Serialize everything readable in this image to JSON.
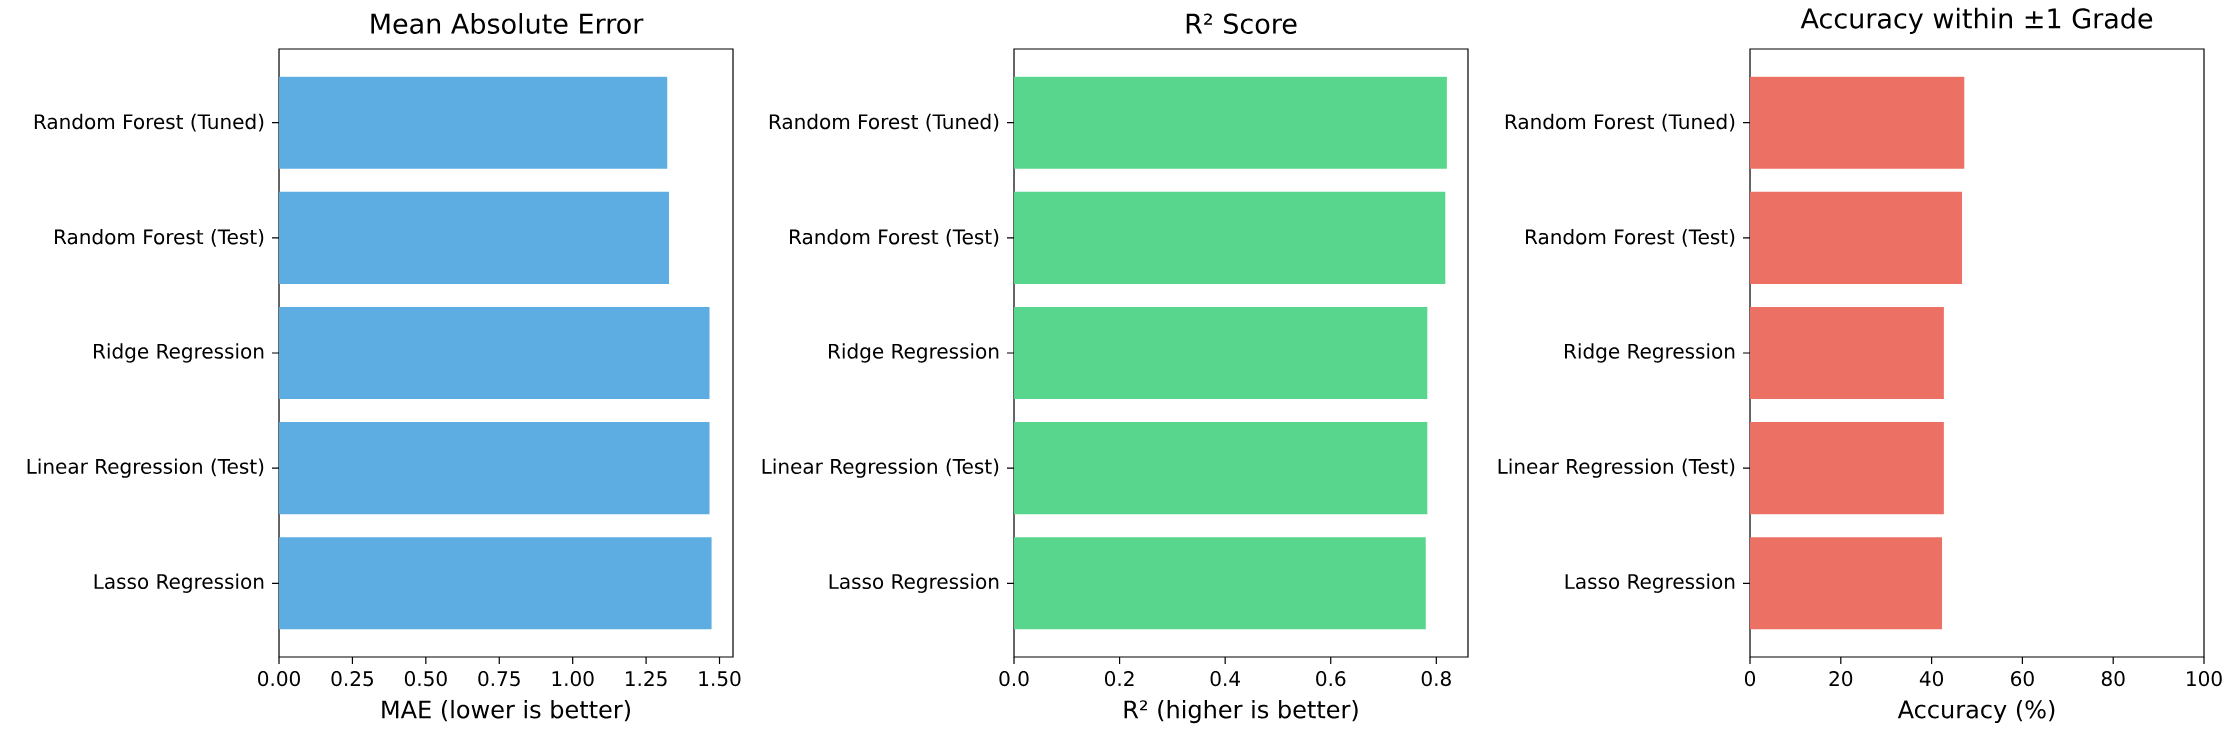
{
  "chart_data": [
    {
      "type": "bar",
      "orientation": "horizontal",
      "title": "Mean Absolute Error",
      "xlabel": "MAE (lower is better)",
      "categories": [
        "Random Forest (Tuned)",
        "Random Forest (Test)",
        "Ridge Regression",
        "Linear Regression (Test)",
        "Lasso Regression"
      ],
      "values": [
        1.322,
        1.328,
        1.466,
        1.466,
        1.473
      ],
      "color": "#5dade2",
      "xlim": [
        0,
        1.546
      ],
      "xticks": [
        {
          "value": 0,
          "label": "0.00"
        },
        0.25,
        {
          "value": 0.5,
          "label": "0.50"
        },
        0.75,
        {
          "value": 1,
          "label": "1.00"
        },
        1.25,
        {
          "value": 1.5,
          "label": "1.50"
        }
      ]
    },
    {
      "type": "bar",
      "orientation": "horizontal",
      "title": "R² Score",
      "xlabel": "R² (higher is better)",
      "categories": [
        "Random Forest (Tuned)",
        "Random Forest (Test)",
        "Ridge Regression",
        "Linear Regression (Test)",
        "Lasso Regression"
      ],
      "values": [
        0.82,
        0.817,
        0.783,
        0.783,
        0.78
      ],
      "color": "#58d68d",
      "xlim": [
        0,
        0.86
      ],
      "xticks": [
        {
          "value": 0,
          "label": "0.0"
        },
        0.2,
        0.4,
        0.6,
        0.8
      ]
    },
    {
      "type": "bar",
      "orientation": "horizontal",
      "title": "Accuracy within ±1 Grade",
      "xlabel": "Accuracy (%)",
      "categories": [
        "Random Forest (Tuned)",
        "Random Forest (Test)",
        "Ridge Regression",
        "Linear Regression (Test)",
        "Lasso Regression"
      ],
      "values": [
        47.2,
        46.7,
        42.7,
        42.7,
        42.3
      ],
      "color": "#ec7063",
      "xlim": [
        0,
        100
      ],
      "xticks": [
        0,
        20,
        40,
        60,
        80,
        100
      ]
    }
  ]
}
